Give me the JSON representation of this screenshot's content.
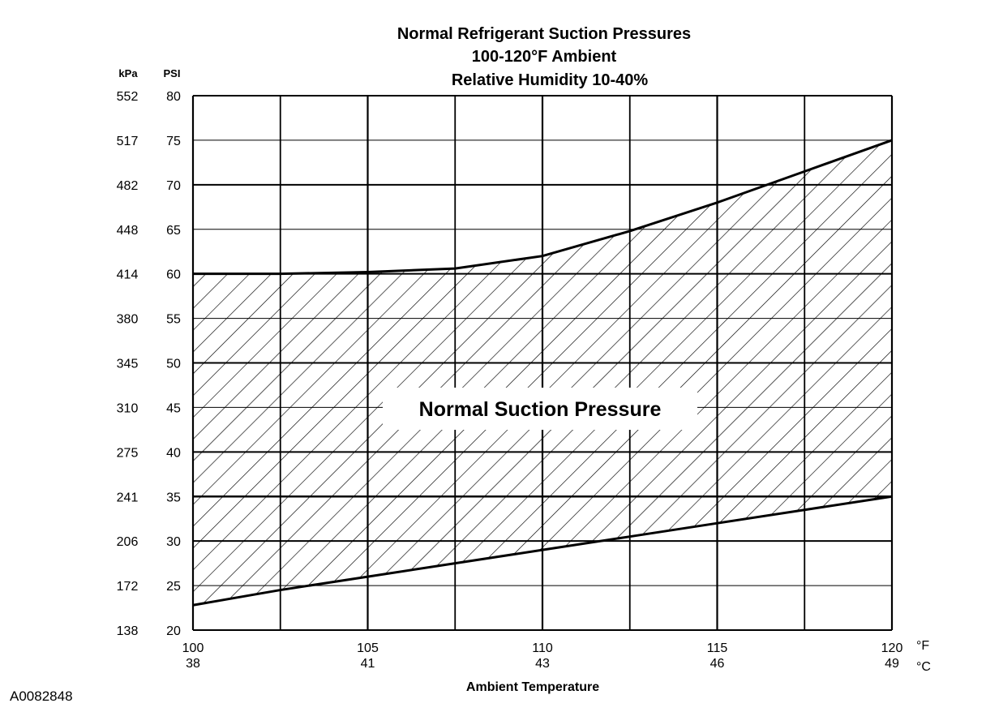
{
  "chart_data": {
    "type": "area",
    "title": [
      "Normal Refrigerant Suction Pressures",
      "100-120°F Ambient",
      "Relative Humidity 10-40%"
    ],
    "xlabel": "Ambient Temperature",
    "x_unit_primary": "°F",
    "x_unit_secondary": "°C",
    "y_unit_primary": "PSI",
    "y_unit_secondary": "kPa",
    "xlim": [
      100,
      120
    ],
    "ylim": [
      20,
      80
    ],
    "grid": true,
    "x_grid_step": 2.5,
    "y_grid_step": 5,
    "x_ticks": [
      {
        "f": "100",
        "c": "38",
        "value": 100
      },
      {
        "f": "105",
        "c": "41",
        "value": 105
      },
      {
        "f": "110",
        "c": "43",
        "value": 110
      },
      {
        "f": "115",
        "c": "46",
        "value": 115
      },
      {
        "f": "120",
        "c": "49",
        "value": 120
      }
    ],
    "y_ticks": [
      {
        "psi": "80",
        "kpa": "552",
        "value": 80
      },
      {
        "psi": "75",
        "kpa": "517",
        "value": 75
      },
      {
        "psi": "70",
        "kpa": "482",
        "value": 70
      },
      {
        "psi": "65",
        "kpa": "448",
        "value": 65
      },
      {
        "psi": "60",
        "kpa": "414",
        "value": 60
      },
      {
        "psi": "55",
        "kpa": "380",
        "value": 55
      },
      {
        "psi": "50",
        "kpa": "345",
        "value": 50
      },
      {
        "psi": "45",
        "kpa": "310",
        "value": 45
      },
      {
        "psi": "40",
        "kpa": "275",
        "value": 40
      },
      {
        "psi": "35",
        "kpa": "241",
        "value": 35
      },
      {
        "psi": "30",
        "kpa": "206",
        "value": 30
      },
      {
        "psi": "25",
        "kpa": "172",
        "value": 25
      },
      {
        "psi": "20",
        "kpa": "138",
        "value": 20
      }
    ],
    "series": [
      {
        "name": "Upper limit",
        "x": [
          100,
          102.5,
          105,
          107.5,
          110,
          112.5,
          115,
          117.5,
          120
        ],
        "y": [
          60,
          60,
          60.2,
          60.6,
          62,
          64.8,
          68,
          71.5,
          75
        ]
      },
      {
        "name": "Lower limit",
        "x": [
          100,
          102.5,
          105,
          107.5,
          110,
          112.5,
          115,
          117.5,
          120
        ],
        "y": [
          22.8,
          24.5,
          26,
          27.5,
          29,
          30.5,
          32,
          33.5,
          35
        ]
      }
    ],
    "emphasized_y": 35,
    "region_label": "Normal Suction Pressure",
    "figure_id": "A0082848"
  }
}
